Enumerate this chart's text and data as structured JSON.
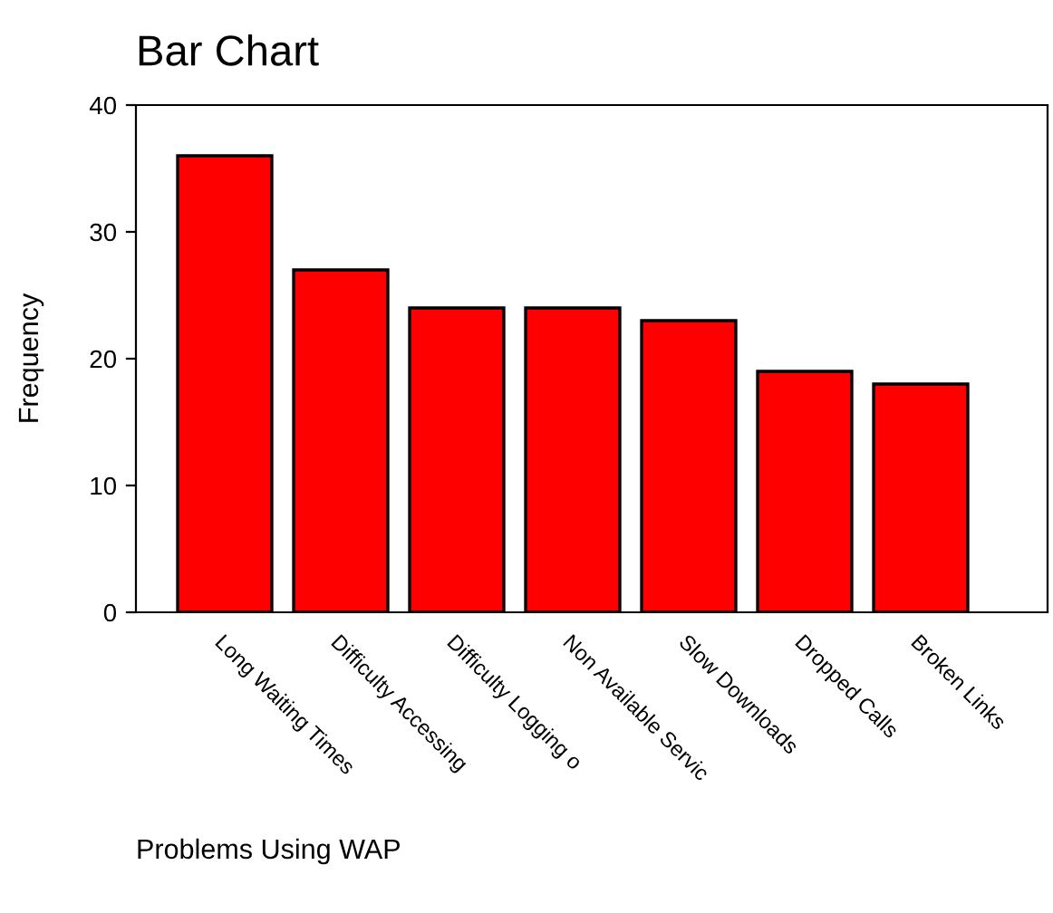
{
  "chart_data": {
    "type": "bar",
    "title": "Bar Chart",
    "xlabel": "Problems Using WAP",
    "ylabel": "Frequency",
    "categories": [
      "Long Waiting Times",
      "Difficulty Accessing",
      "Difficulty Logging o",
      "Non Available Servic",
      "Slow Downloads",
      "Dropped Calls",
      "Broken Links"
    ],
    "values": [
      36,
      27,
      24,
      24,
      23,
      19,
      18
    ],
    "color": "#ff0000",
    "ylim": [
      0,
      40
    ],
    "yticks": [
      0,
      10,
      20,
      30,
      40
    ],
    "grid": false,
    "legend": false
  }
}
